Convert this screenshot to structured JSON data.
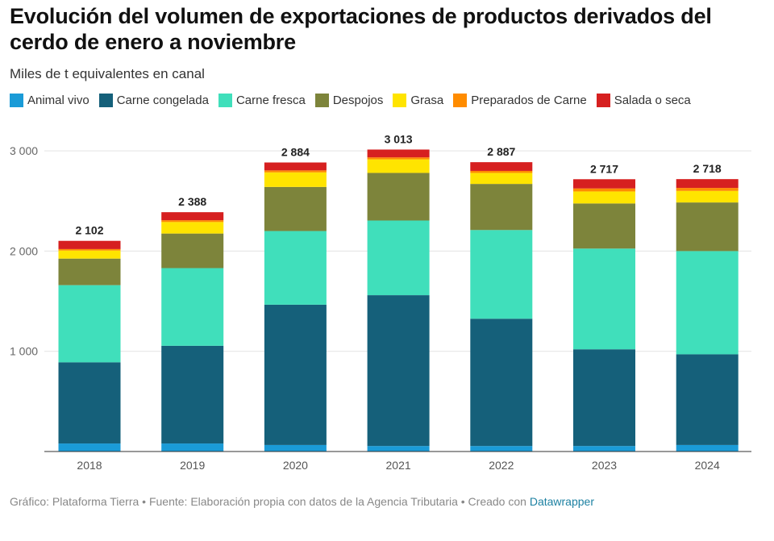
{
  "header": {
    "title": "Evolución del volumen de exportaciones de productos derivados del cerdo de enero a noviembre",
    "subtitle": "Miles de t equivalentes en canal"
  },
  "chart_data": {
    "type": "bar",
    "stacked": true,
    "categories": [
      "2018",
      "2019",
      "2020",
      "2021",
      "2022",
      "2023",
      "2024"
    ],
    "totals": [
      2102,
      2388,
      2884,
      3013,
      2887,
      2717,
      2718
    ],
    "total_labels": [
      "2 102",
      "2 388",
      "2 884",
      "3 013",
      "2 887",
      "2 717",
      "2 718"
    ],
    "y_ticks": [
      1000,
      2000,
      3000
    ],
    "y_tick_labels": [
      "1 000",
      "2 000",
      "3 000"
    ],
    "ylim": [
      0,
      3100
    ],
    "grid": true,
    "legend_position": "top",
    "series": [
      {
        "name": "Animal vivo",
        "color": "#1a9bd7",
        "values": [
          80,
          80,
          65,
          55,
          55,
          55,
          65
        ]
      },
      {
        "name": "Carne congelada",
        "color": "#15607a",
        "values": [
          810,
          975,
          1400,
          1505,
          1270,
          965,
          905
        ]
      },
      {
        "name": "Carne fresca",
        "color": "#40dfbb",
        "values": [
          770,
          775,
          735,
          745,
          885,
          1005,
          1030
        ]
      },
      {
        "name": "Despojos",
        "color": "#7d843b",
        "values": [
          265,
          345,
          440,
          475,
          460,
          450,
          485
        ]
      },
      {
        "name": "Grasa",
        "color": "#ffe400",
        "values": [
          80,
          115,
          145,
          135,
          110,
          120,
          115
        ]
      },
      {
        "name": "Preparados de Carne",
        "color": "#ff8c00",
        "values": [
          15,
          18,
          20,
          20,
          20,
          30,
          30
        ]
      },
      {
        "name": "Salada o seca",
        "color": "#d62020",
        "values": [
          82,
          80,
          79,
          78,
          87,
          92,
          88
        ]
      }
    ]
  },
  "footer": {
    "text": "Gráfico: Plataforma Tierra • Fuente: Elaboración propia con datos de la Agencia Tributaria • Creado con",
    "link_label": "Datawrapper"
  }
}
